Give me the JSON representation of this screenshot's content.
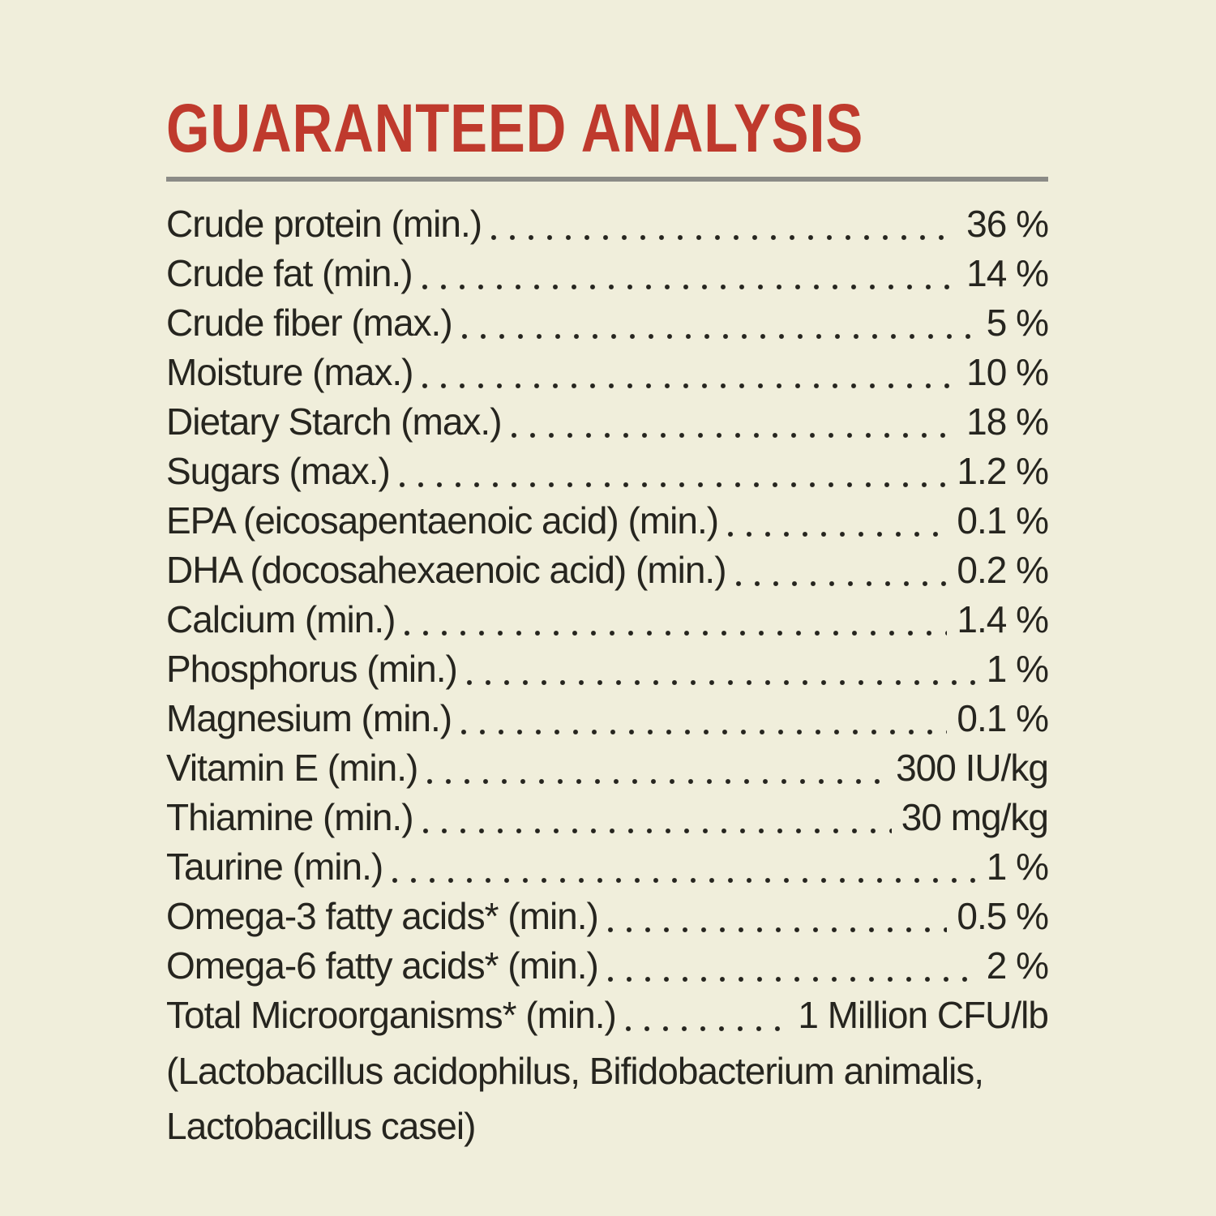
{
  "page": {
    "background_color": "#f0eedb",
    "title_color": "#bf3a2d",
    "rule_color": "#8b8b86",
    "text_color": "#26251f",
    "title": "GUARANTEED ANALYSIS"
  },
  "analysis": {
    "rows": [
      {
        "label": "Crude protein (min.)",
        "value": "36 %"
      },
      {
        "label": "Crude fat (min.)",
        "value": "14 %"
      },
      {
        "label": "Crude fiber (max.)",
        "value": "5 %"
      },
      {
        "label": "Moisture (max.)",
        "value": "10 %"
      },
      {
        "label": "Dietary Starch (max.)",
        "value": "18 %"
      },
      {
        "label": "Sugars (max.)",
        "value": "1.2 %"
      },
      {
        "label": "EPA (eicosapentaenoic acid) (min.)",
        "value": "0.1 %"
      },
      {
        "label": "DHA (docosahexaenoic acid) (min.)",
        "value": "0.2 %"
      },
      {
        "label": "Calcium (min.)",
        "value": "1.4 %"
      },
      {
        "label": "Phosphorus (min.)",
        "value": "1 %"
      },
      {
        "label": "Magnesium (min.)",
        "value": "0.1 %"
      },
      {
        "label": "Vitamin E (min.)",
        "value": "300 IU/kg"
      },
      {
        "label": "Thiamine (min.)",
        "value": "30 mg/kg"
      },
      {
        "label": "Taurine (min.)",
        "value": "1 %"
      },
      {
        "label": "Omega-3 fatty acids* (min.)",
        "value": "0.5 %"
      },
      {
        "label": "Omega-6 fatty acids* (min.)",
        "value": "2 %"
      },
      {
        "label": "Total Microorganisms* (min.)",
        "value": "1 Million CFU/lb"
      }
    ],
    "footnote_lines": [
      "(Lactobacillus acidophilus, Bifidobacterium animalis,",
      "Lactobacillus casei)"
    ]
  }
}
